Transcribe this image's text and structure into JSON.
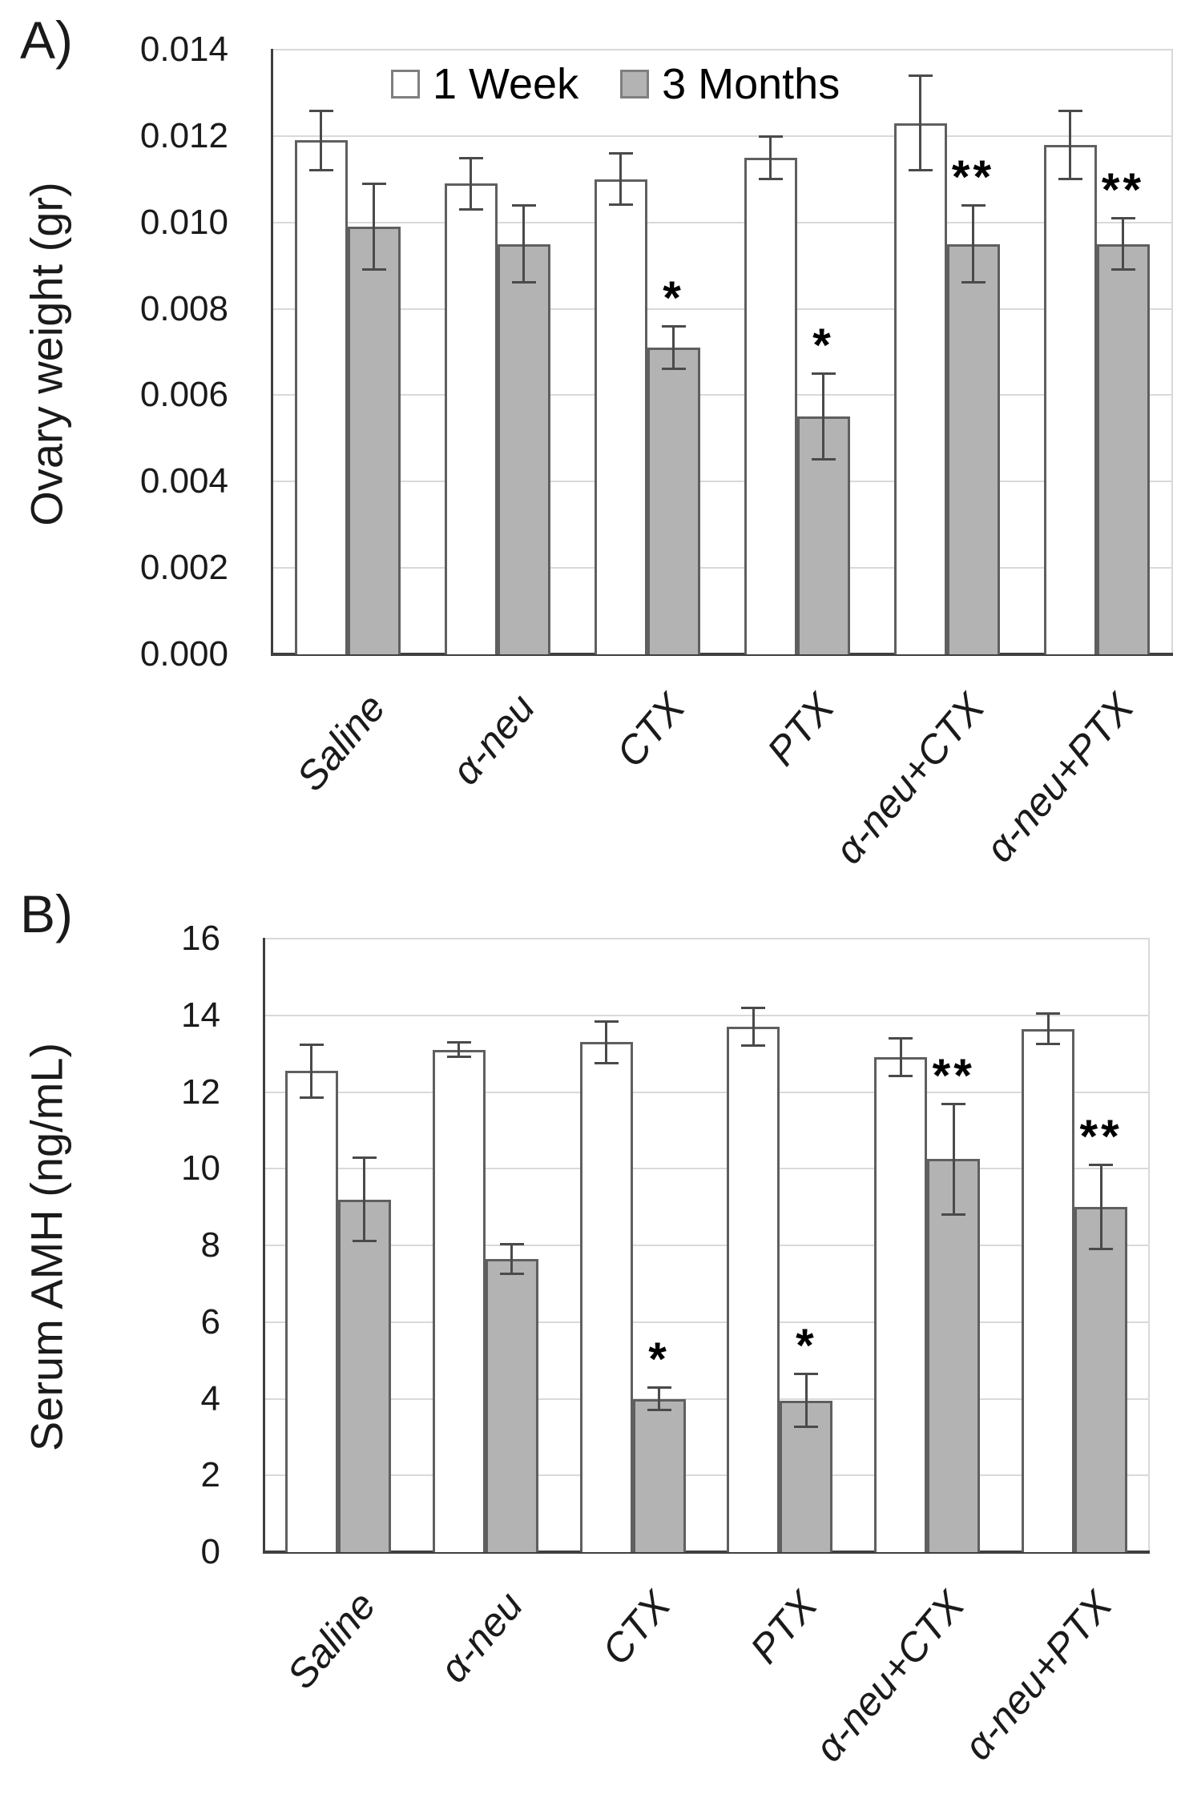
{
  "colors": {
    "bar_1week_fill": "#ffffff",
    "bar_3months_fill": "#b3b3b3",
    "bar_border": "#5f5f5f",
    "gridline": "#d9d9d9",
    "axis_line": "#3f3f3f",
    "error_bar": "#4a4a4a"
  },
  "legend": {
    "items": [
      {
        "label": "1 Week",
        "fill": "#ffffff"
      },
      {
        "label": "3 Months",
        "fill": "#b3b3b3"
      }
    ]
  },
  "chart_data": [
    {
      "type": "bar",
      "panel_label": "A)",
      "ylabel": "Ovary weight (gr)",
      "xlabel": "",
      "categories": [
        "Saline",
        "α-neu",
        "CTX",
        "PTX",
        "α-neu+CTX",
        "α-neu+PTX"
      ],
      "ylim": [
        0,
        0.014
      ],
      "ytick_labels": [
        "0.000",
        "0.002",
        "0.004",
        "0.006",
        "0.008",
        "0.010",
        "0.012",
        "0.014"
      ],
      "grid": true,
      "legend_position": "top-center-inside",
      "series": [
        {
          "name": "1 Week",
          "values": [
            0.0119,
            0.0109,
            0.011,
            0.0115,
            0.0123,
            0.0118
          ],
          "errors": [
            0.0007,
            0.0006,
            0.0006,
            0.0005,
            0.0011,
            0.0008
          ],
          "significance": [
            "",
            "",
            "",
            "",
            "",
            ""
          ]
        },
        {
          "name": "3 Months",
          "values": [
            0.0099,
            0.0095,
            0.0071,
            0.0055,
            0.0095,
            0.0095
          ],
          "errors": [
            0.001,
            0.0009,
            0.0005,
            0.001,
            0.0009,
            0.0006
          ],
          "significance": [
            "",
            "",
            "*",
            "*",
            "**",
            "**"
          ]
        }
      ]
    },
    {
      "type": "bar",
      "panel_label": "B)",
      "ylabel": "Serum AMH (ng/mL)",
      "xlabel": "",
      "categories": [
        "Saline",
        "α-neu",
        "CTX",
        "PTX",
        "α-neu+CTX",
        "α-neu+PTX"
      ],
      "ylim": [
        0,
        16
      ],
      "ytick_labels": [
        "0",
        "2",
        "4",
        "6",
        "8",
        "10",
        "12",
        "14",
        "16"
      ],
      "grid": true,
      "legend_position": "none",
      "series": [
        {
          "name": "1 Week",
          "values": [
            12.55,
            13.1,
            13.3,
            13.7,
            12.9,
            13.65
          ],
          "errors": [
            0.7,
            0.2,
            0.55,
            0.5,
            0.5,
            0.4
          ],
          "significance": [
            "",
            "",
            "",
            "",
            "",
            ""
          ]
        },
        {
          "name": "3 Months",
          "values": [
            9.2,
            7.65,
            4.0,
            3.95,
            10.25,
            9.0
          ],
          "errors": [
            1.1,
            0.4,
            0.3,
            0.7,
            1.45,
            1.1
          ],
          "significance": [
            "",
            "",
            "*",
            "*",
            "**",
            "**"
          ]
        }
      ]
    }
  ]
}
